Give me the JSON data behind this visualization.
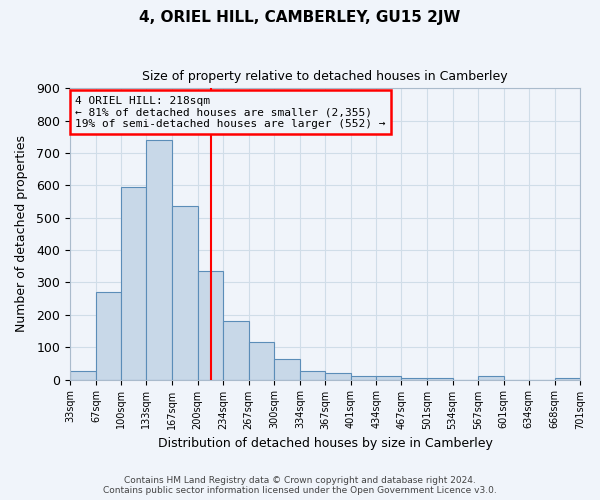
{
  "title": "4, ORIEL HILL, CAMBERLEY, GU15 2JW",
  "subtitle": "Size of property relative to detached houses in Camberley",
  "xlabel": "Distribution of detached houses by size in Camberley",
  "ylabel": "Number of detached properties",
  "bar_color": "#c8d8e8",
  "bar_edge_color": "#5b8db8",
  "grid_color": "#d0dde8",
  "vline_x": 218,
  "vline_color": "red",
  "annotation_line1": "4 ORIEL HILL: 218sqm",
  "annotation_line2": "← 81% of detached houses are smaller (2,355)",
  "annotation_line3": "19% of semi-detached houses are larger (552) →",
  "annotation_box_color": "red",
  "bin_edges": [
    33,
    67,
    100,
    133,
    167,
    200,
    234,
    267,
    300,
    334,
    367,
    401,
    434,
    467,
    501,
    534,
    567,
    601,
    634,
    668,
    701
  ],
  "bar_heights": [
    25,
    270,
    595,
    740,
    535,
    335,
    180,
    115,
    65,
    25,
    20,
    10,
    10,
    5,
    5,
    0,
    10,
    0,
    0,
    5
  ],
  "ylim": [
    0,
    900
  ],
  "yticks": [
    0,
    100,
    200,
    300,
    400,
    500,
    600,
    700,
    800,
    900
  ],
  "footer_line1": "Contains HM Land Registry data © Crown copyright and database right 2024.",
  "footer_line2": "Contains public sector information licensed under the Open Government Licence v3.0.",
  "background_color": "#f0f4fa",
  "figsize": [
    6.0,
    5.0
  ],
  "dpi": 100
}
